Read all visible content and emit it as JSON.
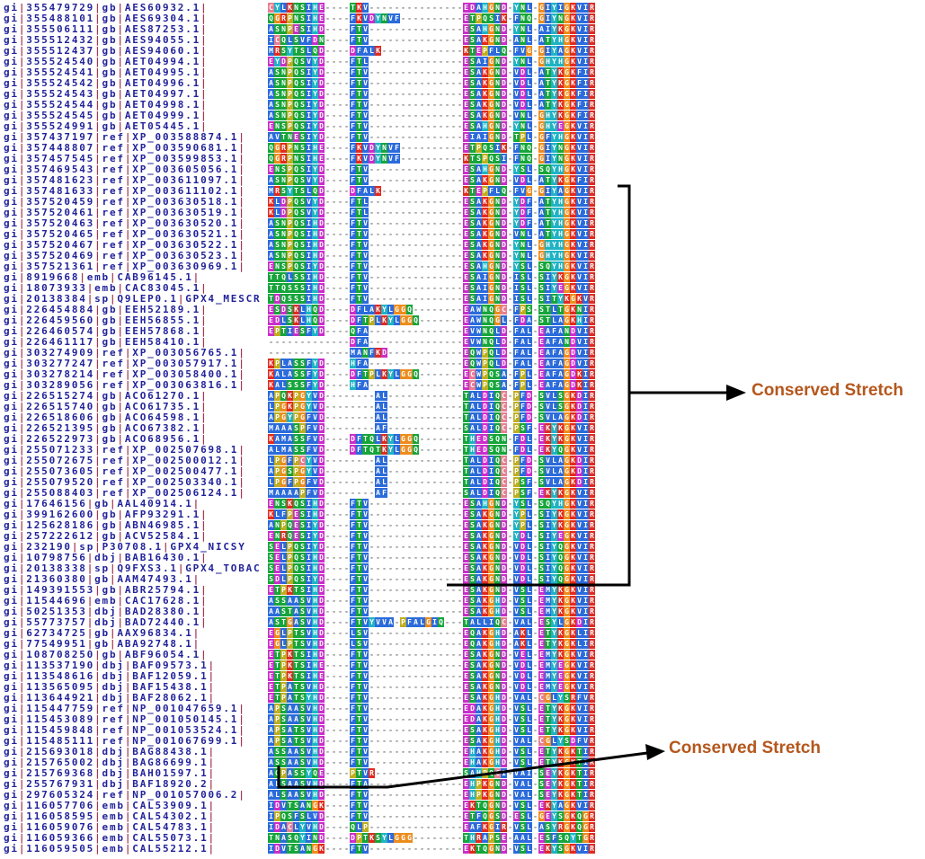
{
  "figure": {
    "type": "multiple-sequence-alignment",
    "background": "#ffffff"
  },
  "colors": {
    "id_text": "#22229a",
    "id_pipe": "#a23b55",
    "gap": "#7a7a7a",
    "residue_text": "#ffffff",
    "annotation_text": "#b4571d",
    "annotation_line": "#000000",
    "classes": {
      "hyd": "#2b6bdb",
      "pos": "#e02a1f",
      "neg": "#c92ec9",
      "pol": "#16a53a",
      "cys": "#e87e92",
      "gly": "#ec8c1e",
      "pro": "#bfae22",
      "aro": "#1fb3c4"
    },
    "residue_class_map": {
      "A": "hyd",
      "V": "hyd",
      "L": "hyd",
      "I": "hyd",
      "M": "hyd",
      "F": "hyd",
      "W": "hyd",
      "K": "pos",
      "R": "pos",
      "D": "neg",
      "E": "neg",
      "N": "pol",
      "Q": "pol",
      "S": "pol",
      "T": "pol",
      "C": "cys",
      "G": "gly",
      "P": "pro",
      "H": "aro",
      "Y": "aro"
    }
  },
  "annotations": [
    {
      "label": "Conserved Stretch",
      "color": "#b4571d"
    },
    {
      "label": "Conserved Stretch",
      "color": "#b4571d"
    }
  ],
  "sequences": [
    {
      "id": "gi|355479729|gb|AES60932.1|",
      "seq": "CYLKNSIHE----TKV---------------EDAHGND-YNL-GIYIGKVIR"
    },
    {
      "id": "gi|355488101|gb|AES69304.1|",
      "seq": "QGRPNSIHE----FKVDYNVF----------ETPQSIK-FNQ-GIYNGKVIR"
    },
    {
      "id": "gi|355506111|gb|AES87253.1|",
      "seq": "ASNPESIHD----FTV---------------ESAHGND-YNL-AIYKGKVIR"
    },
    {
      "id": "gi|355512432|gb|AES94055.1|",
      "seq": "ICQLSVFDN----FTV---------------ESAKGND-ANL-ATYHGKVIR"
    },
    {
      "id": "gi|355512437|gb|AES94060.1|",
      "seq": "MRSYTSLQD----DFALK-------------KTEPFLQ-FVG-GIYAGKVIR"
    },
    {
      "id": "gi|355524540|gb|AET04994.1|",
      "seq": "EYDPQSVYD----FTL---------------ESAIGND-YNL-GHYHGKVIR"
    },
    {
      "id": "gi|355524541|gb|AET04995.1|",
      "seq": "ASNPQSIYD----FTV---------------ESAKGND-VDL-ATYKGKFIR"
    },
    {
      "id": "gi|355524542|gb|AET04996.1|",
      "seq": "ASNPQSIYD----FTV---------------ESAKGND-VDL-ATYKGKFIR"
    },
    {
      "id": "gi|355524543|gb|AET04997.1|",
      "seq": "ASNPQSIYD----FTV---------------ESAKGND-VDL-ATYKGKFIR"
    },
    {
      "id": "gi|355524544|gb|AET04998.1|",
      "seq": "ASNPQSIYD----FTV---------------ESAKGND-VDL-ATYKGKFIR"
    },
    {
      "id": "gi|355524545|gb|AET04999.1|",
      "seq": "ASNPQSIYD----FTV---------------ESAKGND-VNL-GHYKGKFIR"
    },
    {
      "id": "gi|355524991|gb|AET05445.1|",
      "seq": "ENSPQSIYD----FTV---------------ESAHGND-YNL-GHYEGKVIR"
    },
    {
      "id": "gi|357437197|ref|XP_003588874.1|",
      "seq": "AVTNESIYD----FTV---------------EIAIGND-TPL-GFYHGKVIR"
    },
    {
      "id": "gi|357448807|ref|XP_003590681.1|",
      "seq": "QGRPNSIHE----FKVDYNVF----------ETPQSIK-FNQ-GIYNGKVIR"
    },
    {
      "id": "gi|357457545|ref|XP_003599853.1|",
      "seq": "QGRPNSIHE----FKVDYNVF----------KTSPQSI-FNQ-GIYNGKVIR"
    },
    {
      "id": "gi|357469543|ref|XP_003605056.1|",
      "seq": "ENSPQSIYD----FTV---------------ESAHGND-YSL-SQYHGKVIR"
    },
    {
      "id": "gi|357481623|ref|XP_003611097.1|",
      "seq": "ASNPQSVYD----FTV---------------ESAKGND-VDL-ATYKGKFIR"
    },
    {
      "id": "gi|357481633|ref|XP_003611102.1|",
      "seq": "MRSYTSLQD----DFALK-------------KTEPFLQ-FVG-GIYAGKVIR"
    },
    {
      "id": "gi|357520459|ref|XP_003630518.1|",
      "seq": "KLDPQSVYD----FTL---------------ESAKGND-YDF-ATYHGKVIR"
    },
    {
      "id": "gi|357520461|ref|XP_003630519.1|",
      "seq": "KLDPQSVYD----FTL---------------ESAKGND-YDF-ATYHGKVIR"
    },
    {
      "id": "gi|357520463|ref|XP_003630520.1|",
      "seq": "ASNPQSIHD----FTV---------------ESAKGND-YDF-ATYHGKVIR"
    },
    {
      "id": "gi|357520465|ref|XP_003630521.1|",
      "seq": "ASNPQSIHD----FTV---------------ESAKGND-VNL-ATYHGKVIR"
    },
    {
      "id": "gi|357520467|ref|XP_003630522.1|",
      "seq": "ASNPQSIHD----FTV---------------ESAKGND-YNL-GHYHGKVIR"
    },
    {
      "id": "gi|357520469|ref|XP_003630523.1|",
      "seq": "ASNPQSIHD----FTV---------------ESAKGND-YNL-GHYHGKVIR"
    },
    {
      "id": "gi|357521361|ref|XP_003630969.1|",
      "seq": "ENSPQSIYD----FTV---------------ESAHGND-YSL-SQYHGKVIR"
    },
    {
      "id": "gi|8919668|emb|CAB96145.1|",
      "seq": "TTQLSSIHD----FTV---------------ESAIGND-ISL-SIYKGKVIR"
    },
    {
      "id": "gi|18073933|emb|CAC83045.1|",
      "seq": "TTQSSSIHD----FTV---------------ESAIGND-ISL-SIYEGKVIR"
    },
    {
      "id": "gi|20138384|sp|Q9LEP0.1|GPX4_MESCR",
      "seq": "TDQSSSIHD----FTV---------------ESAIGND-ISL-SITYKGKVR"
    },
    {
      "id": "gi|226454884|gb|EEH52189.1|",
      "seq": "ESDSKLHQD----DFLAKYLGGQ--------EAWNQGC-FPS-STLTGKNIR"
    },
    {
      "id": "gi|226459560|gb|EEH56855.1|",
      "seq": "EDLSKLHQD----DFTPLKYLGGQ-------EAWNQGL-FDA-STLAGKHIR"
    },
    {
      "id": "gi|226460574|gb|EEH57868.1|",
      "seq": "EPTIESFYD----QFA---------------EVWNQLD-FAL-EAFANDVIR"
    },
    {
      "id": "gi|226461117|gb|EEH58410.1|",
      "seq": "-------------DFA---------------EVWNQLD-FAL-EAFANDVIR"
    },
    {
      "id": "gi|303274909|ref|XP_003056765.1|",
      "seq": "-------------MANFKD------------EQWPQLD-FAL-EAFAGDVIR"
    },
    {
      "id": "gi|303277247|ref|XP_003057917.1|",
      "seq": "KPLASSFYD----HFA---------------EQWPQLD-FAL-EAFAGDVIR"
    },
    {
      "id": "gi|303278214|ref|XP_003058400.1|",
      "seq": "KALASSFYD----DFTPLKYLGGQ-------ECWPQSA-FPL-EAFAGDKIR"
    },
    {
      "id": "gi|303289056|ref|XP_003063816.1|",
      "seq": "KALSSSFYD----HFA---------------ECWPQSA-FPL-EAFAGDKIR"
    },
    {
      "id": "gi|226515274|gb|ACO61270.1|",
      "seq": "APQKPGYVD--------AL------------TALDIQC-PFD-SVLSGKDIR"
    },
    {
      "id": "gi|226515740|gb|ACO61735.1|",
      "seq": "LPGKPGYVD--------AL------------TALDIQC-PFD-SVLSGKDIR"
    },
    {
      "id": "gi|226518606|gb|ACO64598.1|",
      "seq": "APGYPGFVD--------AL------------TALDIQC-PFD-SVLAGKDIR"
    },
    {
      "id": "gi|226521395|gb|ACO67382.1|",
      "seq": "MAAASPFVD--------AF------------SALDIQC-PSF-EKYKGKVIR"
    },
    {
      "id": "gi|226522973|gb|ACO68956.1|",
      "seq": "KAMASSFVD----DFTQLKYLGGQ-------THEDSQN-FDL-EKYKGKVIR"
    },
    {
      "id": "gi|255071233|ref|XP_002507698.1|",
      "seq": "ALMASSFVD----DFTQTKYLGGQ-------THEDSQN-FDL-EKYQGKVIR"
    },
    {
      "id": "gi|255072675|ref|XP_002500012.1|",
      "seq": "LPGFPCYVD--------AL------------TALDIQC-PFD-SVLAGKDIR"
    },
    {
      "id": "gi|255073605|ref|XP_002500477.1|",
      "seq": "APGSPGYVD--------AL------------TALDIQC-PFD-SVLAGKDIR"
    },
    {
      "id": "gi|255079520|ref|XP_002503340.1|",
      "seq": "LPGFPGFVD--------AL------------TALDIQC-PSF-SVLAGKDIR"
    },
    {
      "id": "gi|255088403|ref|XP_002506124.1|",
      "seq": "MAAAAPFVD--------AF------------SALDIQC-PSF-EKYKGKVIR"
    },
    {
      "id": "gi|17646156|gb|AAL40914.1|",
      "seq": "ENSKQSIHD----FTV---------------ESAHGND-YSL-SQYHGKVIR"
    },
    {
      "id": "gi|399162600|gb|AFP93291.1|",
      "seq": "KLFPESIHD----FTV---------------ESAKGND-YPL-SIYKGKVIR"
    },
    {
      "id": "gi|125628186|gb|ABN46985.1|",
      "seq": "ANPQESIYD----FTV---------------ESAKGND-YPL-SIYKGKVIR"
    },
    {
      "id": "gi|257222612|gb|ACV52584.1|",
      "seq": "ENRQESIYD----FTV---------------ESAKGND-YDL-SIYEGKVIR"
    },
    {
      "id": "gi|232190|sp|P30708.1|GPX4_NICSY",
      "seq": "SELPQSIYD----FTV---------------ESAKGND-VDL-SIYQGKVIR"
    },
    {
      "id": "gi|10798756|dbj|BAB16430.1|",
      "seq": "SELPQSIHD----FTV---------------ESAKGND-VDL-SIYQGKVIR"
    },
    {
      "id": "gi|20138338|sp|Q9FXS3.1|GPX4_TOBAC",
      "seq": "SELPQSIHD----FTV---------------ESAKGND-VDL-SIYQGKVIR"
    },
    {
      "id": "gi|21360380|gb|AAM47493.1|",
      "seq": "SDLPQSIYD----FTV---------------ESAKGND-VDL-SIYQGKVIR"
    },
    {
      "id": "gi|149391553|gb|ABR25794.1|",
      "seq": "ETPKTSIHD----FTV---------------ESAKGND-VSL-EMYKGKVIR"
    },
    {
      "id": "gi|11544696|emb|CAC17628.1|",
      "seq": "ASSAASVHD----FTV---------------ESAKGHD-VSL-EMYKGKVIR"
    },
    {
      "id": "gi|50251353|dbj|BAD28380.1|",
      "seq": "AASTASVHD----FTV---------------ESAKGHD-VSL-EMYKGKVIR"
    },
    {
      "id": "gi|55773757|dbj|BAD72440.1|",
      "seq": "ASTGASVHD----FTVYVVA-PFALGIQ---TALLIQC-VAL-ESYLGKDIR"
    },
    {
      "id": "gi|62734725|gb|AAX96834.1|",
      "seq": "EGLPTSVHD----LSV---------------EQAKGHD-AKL-ETYKGKLIR"
    },
    {
      "id": "gi|77549951|gb|ABA92748.1|",
      "seq": "EGLPTSVHD----LSV---------------EQAKGHD-AKL-ETYKGKLIR"
    },
    {
      "id": "gi|108708250|gb|ABF96054.1|",
      "seq": "ETPKTSIHD----FTV---------------ESAKGND-VEL-EMYKGKVIR"
    },
    {
      "id": "gi|113537190|dbj|BAF09573.1|",
      "seq": "ETPKTSIHE----FTV---------------ESAKGND-VDL-EMYEGKVIR"
    },
    {
      "id": "gi|113548616|dbj|BAF12059.1|",
      "seq": "ETPKTSIHE----FTV---------------ESAKGND-VDL-EMYEGKVIR"
    },
    {
      "id": "gi|113565095|dbj|BAF15438.1|",
      "seq": "ETPATSVHD----FTV---------------ESAKGND-VDL-EMYEGKVIR"
    },
    {
      "id": "gi|113644921|dbj|BAF28062.1|",
      "seq": "ETPATSYHD----FTV---------------ESAKGHD-VAL-CGLYSRFVR"
    },
    {
      "id": "gi|115447759|ref|NP_001047659.1|",
      "seq": "APSAASVHD----FTV---------------EDAKGHD-VSL-ETYKGKVIR"
    },
    {
      "id": "gi|115453089|ref|NP_001050145.1|",
      "seq": "APSAASVHD----FTV---------------EDAKGHD-VSL-ETYKGKVIR"
    },
    {
      "id": "gi|115459848|ref|NP_001053524.1|",
      "seq": "APSATSVHD----FTV---------------ESAKGHD-VSL-ETYKGKVIR"
    },
    {
      "id": "gi|115485111|ref|NP_001067699.1|",
      "seq": "APSATSVHD----FTV---------------ESAKGHD-VAL-CGLYSDFVR"
    },
    {
      "id": "gi|215693018|dbj|BAG88438.1|",
      "seq": "ASSAASVHD----FTV---------------EHAKGHD-VSL-ETYKGKTIR"
    },
    {
      "id": "gi|215765002|dbj|BAG86699.1|",
      "seq": "ASSAASVHD----FTV---------------EHAKGHD-VSL-ETYKGKTIR"
    },
    {
      "id": "gi|215769368|dbj|BAH01597.1|",
      "seq": "AQPASSYQE----PTVR--------------SAHPQCI-VAI-SEYKGKTIR"
    },
    {
      "id": "gi|255767931|dbj|BAF18920.2|",
      "seq": "ALSAASVHD----FTA---------------EHPKGND-VAL-SEYKGKTIR"
    },
    {
      "id": "gi|297605324|ref|NP_001057006.2|",
      "seq": "ALSAASVHD----FTV---------------EHPKGND-VAL-SEYKGKTIR"
    },
    {
      "id": "gi|116057706|emb|CAL53909.1|",
      "seq": "IDVTSANGK----FTV---------------EKTQGND-VSL-EKYAGKVIR"
    },
    {
      "id": "gi|116058595|emb|CAL54302.1|",
      "seq": "IPQSFSLVD----FTV---------------ETFQGSD-ESL-GEYSGKQGR"
    },
    {
      "id": "gi|116059076|emb|CAL54783.1|",
      "seq": "IDACLYVHD----QLP---------------EAFKGIR-VSL-ASYRGKQGR"
    },
    {
      "id": "gi|116059366|emb|CAL55073.1|",
      "seq": "TNASQYIND----DPTKSYLGGG--------THRAPSE-AAL-ESFSQYTGR"
    },
    {
      "id": "gi|116059505|emb|CAL55212.1|",
      "seq": "IDVTSANGK----FTV---------------EKTQGND-VSL-EKYSGKVIR"
    }
  ]
}
